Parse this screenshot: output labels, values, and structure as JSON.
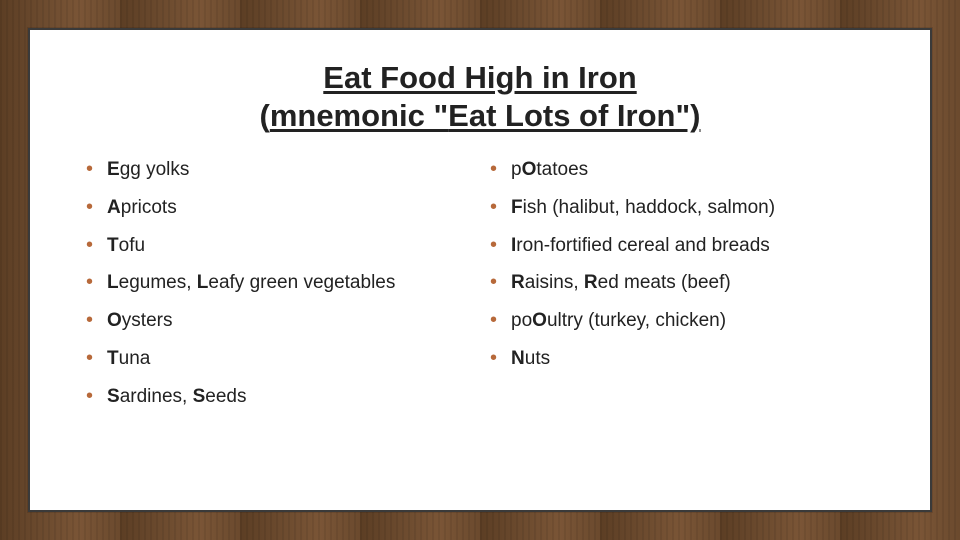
{
  "colors": {
    "wood_bg": "#6b4a2e",
    "card_bg": "#ffffff",
    "card_border": "#3a3a3a",
    "text": "#222222",
    "bullet": "#b7693a"
  },
  "typography": {
    "title_fontsize_pt": 23,
    "body_fontsize_pt": 14,
    "font_family": "Arial"
  },
  "title": {
    "line1": "Eat Food High in Iron",
    "line2_open": "(",
    "line2_a": "mnemonic \"",
    "line2_b": "Eat Lots of Iron",
    "line2_c": "\")"
  },
  "left_items": [
    [
      {
        "t": "E",
        "b": true
      },
      {
        "t": "gg yolks",
        "b": false
      }
    ],
    [
      {
        "t": "A",
        "b": true
      },
      {
        "t": "pricots",
        "b": false
      }
    ],
    [
      {
        "t": "T",
        "b": true
      },
      {
        "t": "ofu",
        "b": false
      }
    ],
    [
      {
        "t": "L",
        "b": true
      },
      {
        "t": "egumes, ",
        "b": false
      },
      {
        "t": "L",
        "b": true
      },
      {
        "t": "eafy green vegetables",
        "b": false
      }
    ],
    [
      {
        "t": "O",
        "b": true
      },
      {
        "t": "ysters",
        "b": false
      }
    ],
    [
      {
        "t": "T",
        "b": true
      },
      {
        "t": "una",
        "b": false
      }
    ],
    [
      {
        "t": "S",
        "b": true
      },
      {
        "t": "ardines, ",
        "b": false
      },
      {
        "t": "S",
        "b": true
      },
      {
        "t": "eeds",
        "b": false
      }
    ]
  ],
  "right_items": [
    [
      {
        "t": "p",
        "b": false
      },
      {
        "t": "O",
        "b": true
      },
      {
        "t": "tatoes",
        "b": false
      }
    ],
    [
      {
        "t": "F",
        "b": true
      },
      {
        "t": "ish (halibut, haddock, salmon)",
        "b": false
      }
    ],
    [
      {
        "t": "I",
        "b": true
      },
      {
        "t": "ron-fortified cereal and breads",
        "b": false
      }
    ],
    [
      {
        "t": "R",
        "b": true
      },
      {
        "t": "aisins, ",
        "b": false
      },
      {
        "t": "R",
        "b": true
      },
      {
        "t": "ed meats (beef)",
        "b": false
      }
    ],
    [
      {
        "t": "po",
        "b": false
      },
      {
        "t": "O",
        "b": true
      },
      {
        "t": "ultry (turkey, chicken)",
        "b": false
      }
    ],
    [
      {
        "t": "N",
        "b": true
      },
      {
        "t": "uts",
        "b": false
      }
    ]
  ],
  "bullet_glyph": "•"
}
